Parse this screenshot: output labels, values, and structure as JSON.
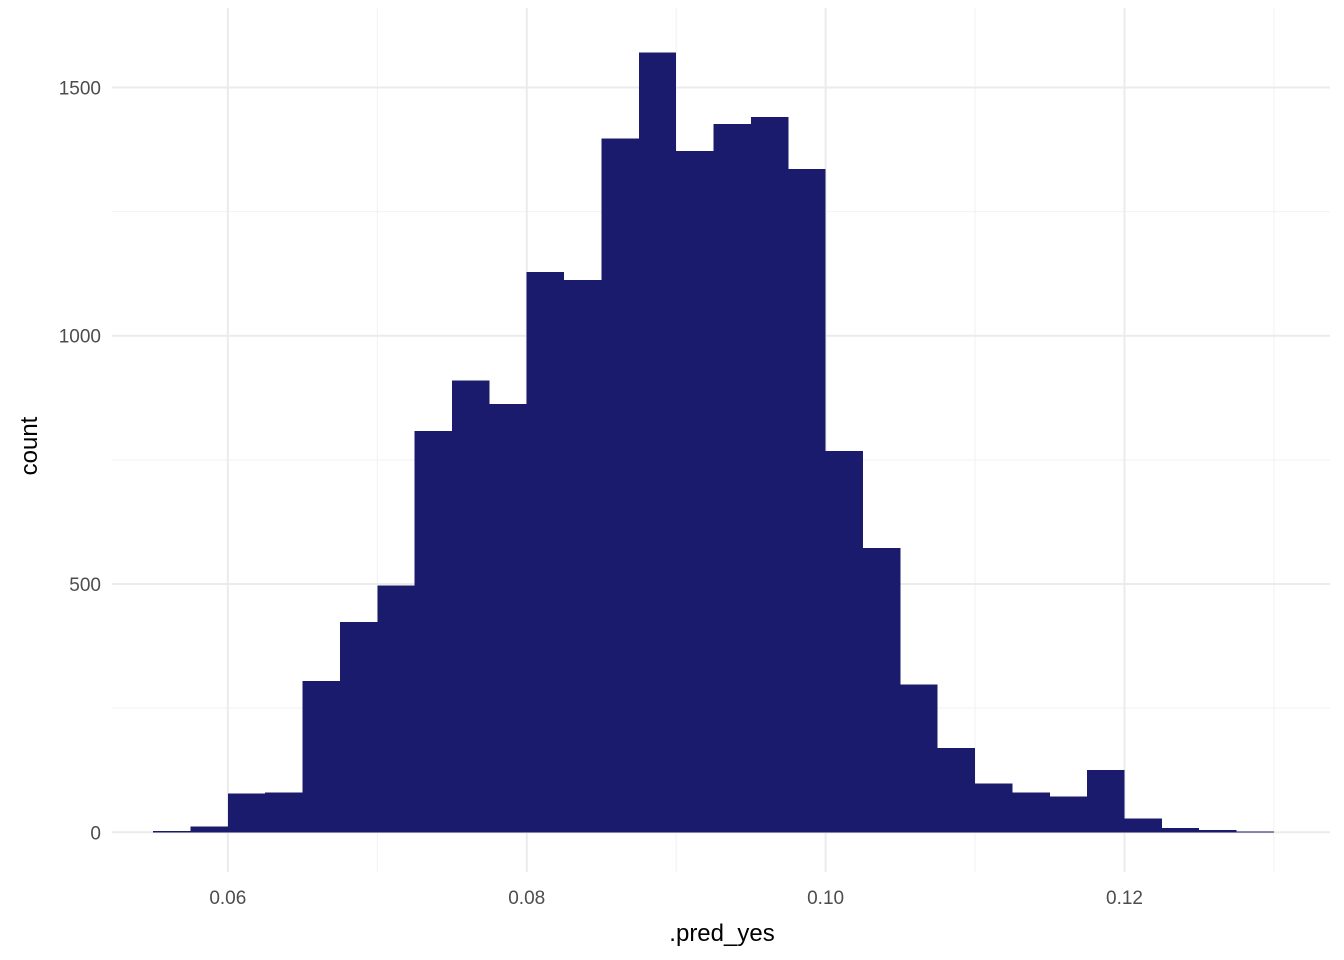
{
  "chart_data": {
    "type": "bar",
    "subtype": "histogram",
    "title": "",
    "xlabel": ".pred_yes",
    "ylabel": "count",
    "xlim": [
      0.05225,
      0.13375
    ],
    "ylim": [
      -80,
      1660
    ],
    "x_ticks": [
      0.06,
      0.08,
      0.1,
      0.12
    ],
    "x_tick_labels": [
      "0.06",
      "0.08",
      "0.10",
      "0.12"
    ],
    "y_ticks": [
      0,
      500,
      1000,
      1500
    ],
    "y_tick_labels": [
      "0",
      "500",
      "1000",
      "1500"
    ],
    "grid": true,
    "legend": "none",
    "bar_color": "#1b1b6d",
    "bin_width": 0.0025,
    "bins": [
      {
        "x0": 0.055,
        "x1": 0.0575,
        "count": 3
      },
      {
        "x0": 0.0575,
        "x1": 0.06,
        "count": 12
      },
      {
        "x0": 0.06,
        "x1": 0.0625,
        "count": 78
      },
      {
        "x0": 0.0625,
        "x1": 0.065,
        "count": 80
      },
      {
        "x0": 0.065,
        "x1": 0.0675,
        "count": 305
      },
      {
        "x0": 0.0675,
        "x1": 0.07,
        "count": 423
      },
      {
        "x0": 0.07,
        "x1": 0.0725,
        "count": 497
      },
      {
        "x0": 0.0725,
        "x1": 0.075,
        "count": 808
      },
      {
        "x0": 0.075,
        "x1": 0.0775,
        "count": 910
      },
      {
        "x0": 0.0775,
        "x1": 0.08,
        "count": 863
      },
      {
        "x0": 0.08,
        "x1": 0.0825,
        "count": 1128
      },
      {
        "x0": 0.0825,
        "x1": 0.085,
        "count": 1112
      },
      {
        "x0": 0.085,
        "x1": 0.0875,
        "count": 1397
      },
      {
        "x0": 0.0875,
        "x1": 0.09,
        "count": 1570
      },
      {
        "x0": 0.09,
        "x1": 0.0925,
        "count": 1372
      },
      {
        "x0": 0.0925,
        "x1": 0.095,
        "count": 1426
      },
      {
        "x0": 0.095,
        "x1": 0.0975,
        "count": 1440
      },
      {
        "x0": 0.0975,
        "x1": 0.1,
        "count": 1336
      },
      {
        "x0": 0.1,
        "x1": 0.1025,
        "count": 768
      },
      {
        "x0": 0.1025,
        "x1": 0.105,
        "count": 572
      },
      {
        "x0": 0.105,
        "x1": 0.1075,
        "count": 298
      },
      {
        "x0": 0.1075,
        "x1": 0.11,
        "count": 170
      },
      {
        "x0": 0.11,
        "x1": 0.1125,
        "count": 98
      },
      {
        "x0": 0.1125,
        "x1": 0.115,
        "count": 80
      },
      {
        "x0": 0.115,
        "x1": 0.1175,
        "count": 72
      },
      {
        "x0": 0.1175,
        "x1": 0.12,
        "count": 125
      },
      {
        "x0": 0.12,
        "x1": 0.1225,
        "count": 28
      },
      {
        "x0": 0.1225,
        "x1": 0.125,
        "count": 9
      },
      {
        "x0": 0.125,
        "x1": 0.1275,
        "count": 5
      },
      {
        "x0": 0.1275,
        "x1": 0.13,
        "count": 2
      }
    ]
  }
}
